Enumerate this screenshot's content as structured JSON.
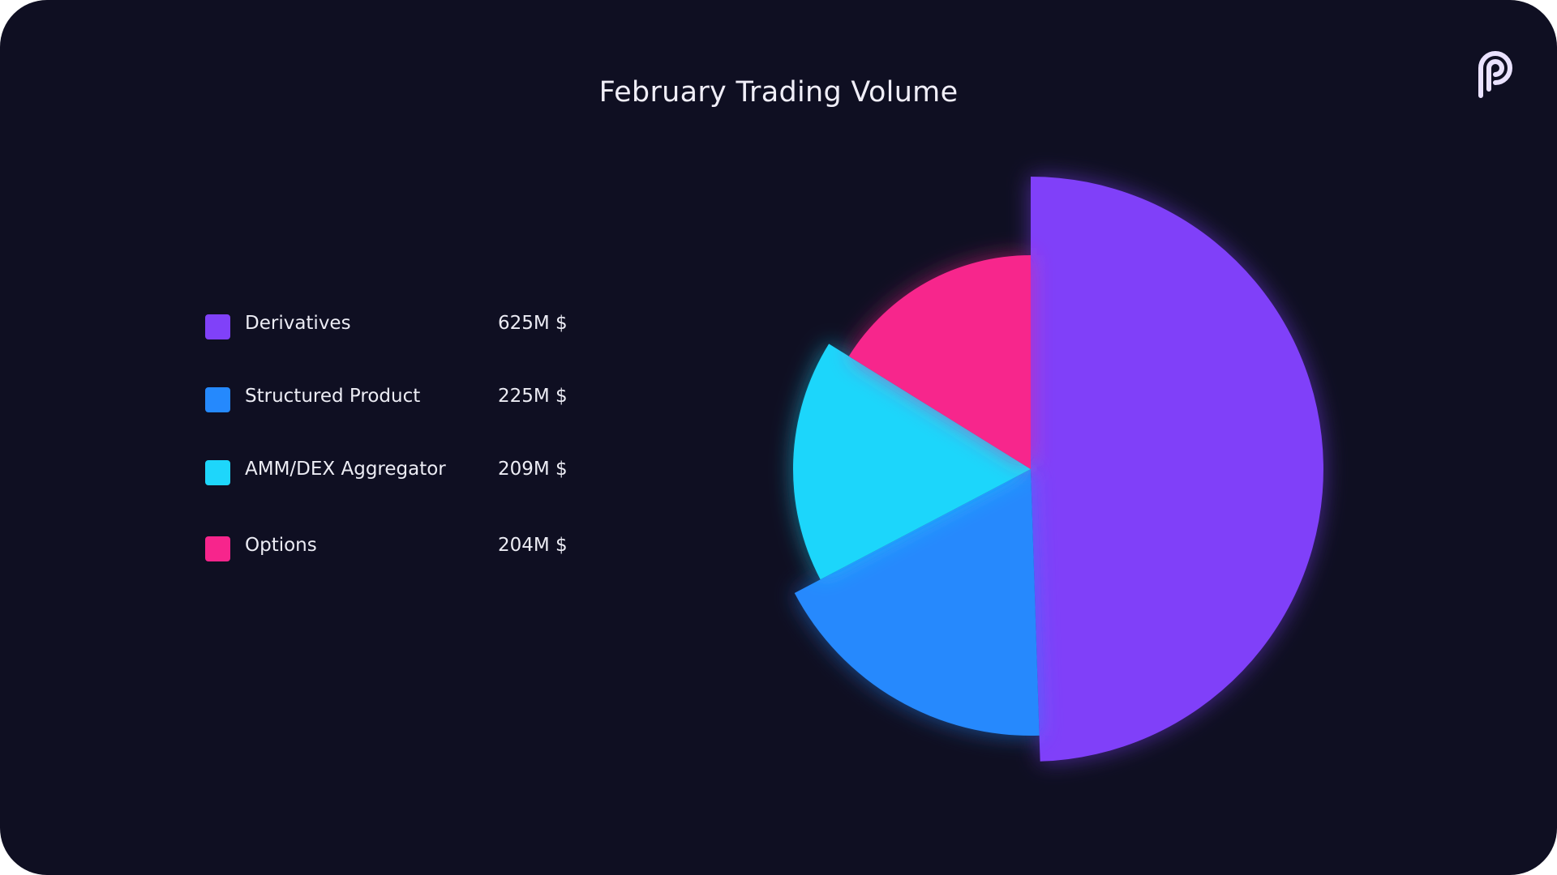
{
  "chart_data": {
    "type": "pie",
    "variant": "variable-radius",
    "title": "February Trading Volume",
    "unit": "M $",
    "legend_placement": "left",
    "categories": [
      "Derivatives",
      "Structured Product",
      "AMM/DEX Aggregator",
      "Options"
    ],
    "values": [
      625,
      225,
      209,
      204
    ],
    "value_labels": [
      "625M $",
      "225M $",
      "209M $",
      "204M $"
    ],
    "colors": [
      "#8041f9",
      "#2589fd",
      "#1ed6fb",
      "#f7258c"
    ]
  }
}
